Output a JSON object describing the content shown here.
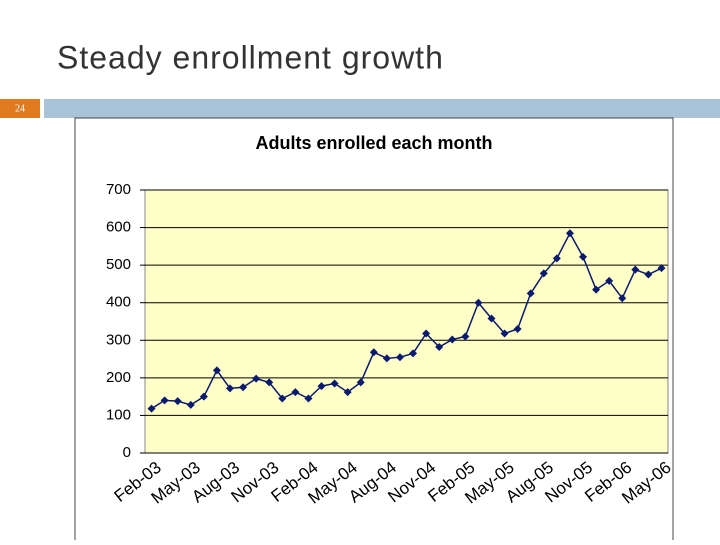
{
  "slide_title": "Steady enrollment growth",
  "slide_number": "24",
  "chart_data": {
    "type": "line",
    "title": "Adults enrolled each month",
    "categories": [
      "Feb-03",
      null,
      null,
      "May-03",
      null,
      null,
      "Aug-03",
      null,
      null,
      "Nov-03",
      null,
      null,
      "Feb-04",
      null,
      null,
      "May-04",
      null,
      null,
      "Aug-04",
      null,
      null,
      "Nov-04",
      null,
      null,
      "Feb-05",
      null,
      null,
      "May-05",
      null,
      null,
      "Aug-05",
      null,
      null,
      "Nov-05",
      null,
      null,
      "Feb-06",
      null,
      null,
      "May-06"
    ],
    "values": [
      118,
      140,
      138,
      128,
      150,
      220,
      172,
      175,
      198,
      188,
      145,
      162,
      145,
      178,
      185,
      162,
      188,
      268,
      252,
      255,
      265,
      318,
      282,
      302,
      310,
      400,
      358,
      318,
      330,
      425,
      478,
      518,
      585,
      522,
      435,
      458,
      412,
      488,
      475,
      492
    ],
    "color": "#0a1a6e",
    "plot_background": "#ffffc8",
    "ylim": [
      0,
      700
    ],
    "yticks": [
      0,
      100,
      200,
      300,
      400,
      500,
      600,
      700
    ],
    "grid": true
  }
}
